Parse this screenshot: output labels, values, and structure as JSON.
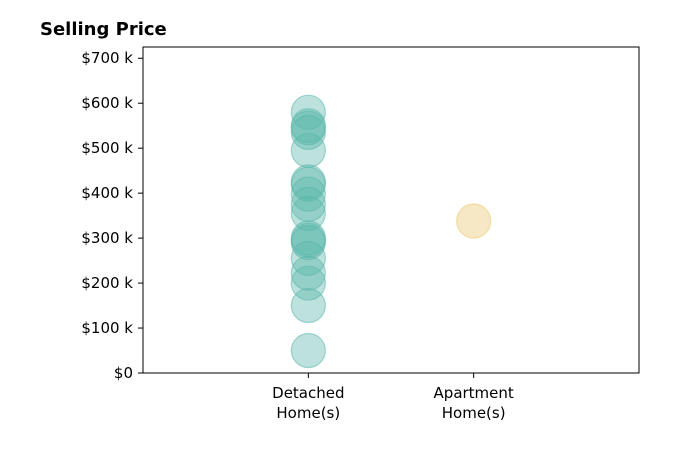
{
  "chart_data": {
    "type": "scatter",
    "title": "Selling Price",
    "xlabel": "",
    "ylabel": "",
    "categories": [
      [
        "Detached",
        "Home(s)"
      ],
      [
        "Apartment",
        "Home(s)"
      ]
    ],
    "y_ticks": [
      {
        "value": 0,
        "label": "$0"
      },
      {
        "value": 100000,
        "label": "$100 k"
      },
      {
        "value": 200000,
        "label": "$200 k"
      },
      {
        "value": 300000,
        "label": "$300 k"
      },
      {
        "value": 400000,
        "label": "$400 k"
      },
      {
        "value": 500000,
        "label": "$500 k"
      },
      {
        "value": 600000,
        "label": "$600 k"
      },
      {
        "value": 700000,
        "label": "$700 k"
      }
    ],
    "ylim": [
      0,
      725000
    ],
    "x_range": [
      -1,
      2
    ],
    "grid": false,
    "series": [
      {
        "category": 0,
        "color": "#5bb7aa",
        "values": [
          50000,
          150000,
          200000,
          222000,
          255000,
          290000,
          295000,
          300000,
          355000,
          375000,
          398000,
          420000,
          425000,
          495000,
          535000,
          545000,
          550000,
          580000
        ]
      },
      {
        "category": 1,
        "color": "#ecc66f",
        "values": [
          338000
        ]
      }
    ]
  }
}
